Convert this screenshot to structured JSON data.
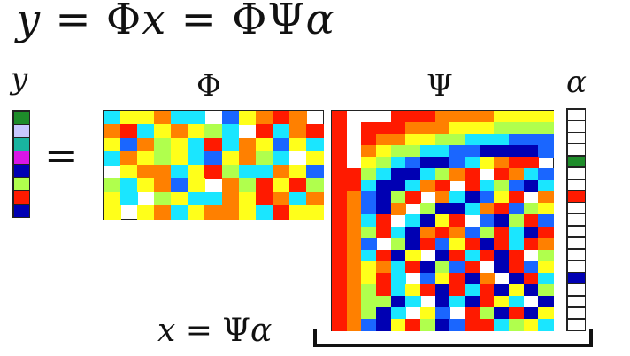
{
  "title": {
    "y": "y",
    "eq1": "=",
    "phi1": "Φ",
    "x": "x",
    "eq2": "=",
    "phi2": "Φ",
    "psi": "Ψ",
    "alpha": "α"
  },
  "labels": {
    "y": "y",
    "phi": "Φ",
    "psi": "Ψ",
    "alpha": "α"
  },
  "equals_sign": "=",
  "bottom_equation": {
    "x": "x",
    "eq": "=",
    "psi": "Ψ",
    "alpha": "α"
  },
  "palette": {
    "dr": "#7f0000",
    "r": "#ff1a00",
    "o": "#ff8000",
    "y": "#ffff1a",
    "l": "#b0ff4d",
    "c": "#1ae6ff",
    "b": "#1a66ff",
    "n": "#0000b3",
    "w": "#ffffff",
    "g": "#1e8c2a",
    "m": "#d916e6",
    "p": "#c8c8ff",
    "t": "#19b4a0"
  },
  "y_vector": [
    "g",
    "p",
    "t",
    "m",
    "n",
    "l",
    "r",
    "n"
  ],
  "alpha_vector": [
    "w",
    "w",
    "w",
    "w",
    "g",
    "w",
    "w",
    "r",
    "w",
    "w",
    "w",
    "w",
    "w",
    "w",
    "n",
    "w",
    "w",
    "w",
    "w"
  ],
  "phi_matrix": [
    "cyyoccdbyorod",
    "orcyoylcdrcor",
    "ybolycrcoybyc",
    "coylycbyolcdy",
    "dyoocyrlccoyb",
    "lcyobydolryrl",
    "ycdlyccoyroco",
    "ydyocyooycryy"
  ],
  "psi_matrix": [
    "rdddrrrooooyyyy",
    "rdrrroooyyyllll",
    "rdrooyyllcccbbb",
    "rdoyllccbbnnnnb",
    "rdylcbnnbcyorrd",
    "rrlcnnclordrocb",
    "rrcnncordrclbnc",
    "robnlrdocnbyrdo",
    "robnodlnncorbly",
    "rocrdcnyrdbnlrb",
    "rolrcnoroblrcnr",
    "robdlnrbyrnrcro",
    "rocrnydnrcrnrdl",
    "royocrnlbrdnrby",
    "royrcdbyrnodnrc",
    "rolrcyrnrcrnynl",
    "rollncdncnrycdn",
    "rolncdybdrlnrny",
    "robnyrlnbrrclyc"
  ]
}
